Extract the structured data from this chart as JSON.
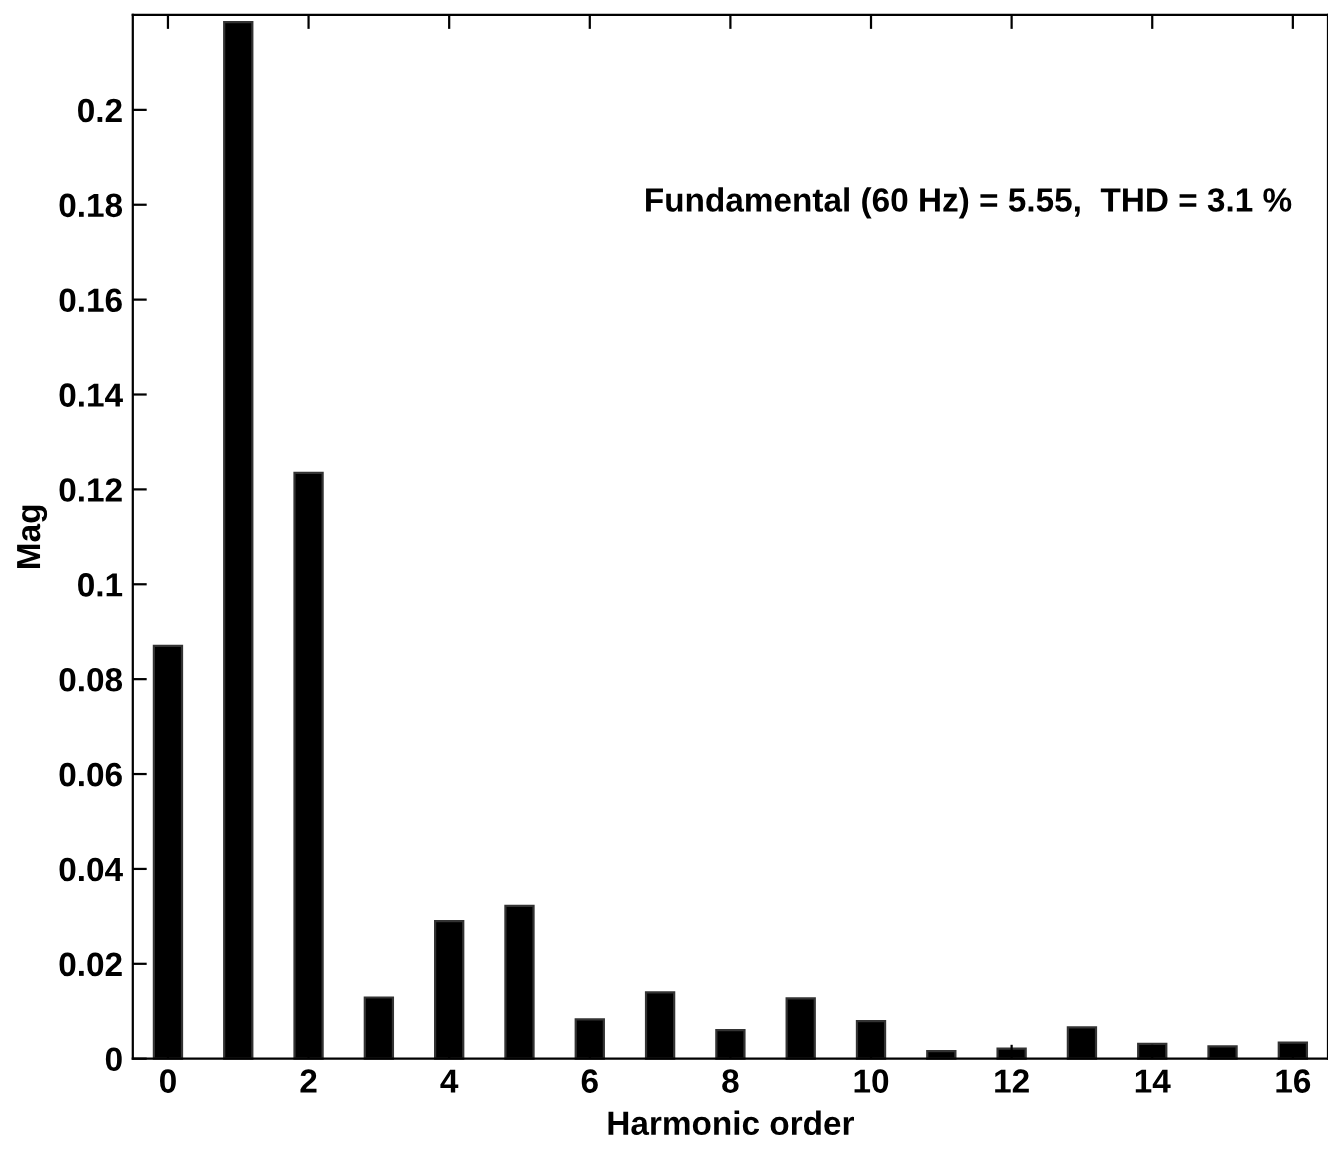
{
  "chart_data": {
    "type": "bar",
    "xlabel": "Harmonic order",
    "ylabel": "Mag",
    "x": [
      0,
      1,
      2,
      3,
      4,
      5,
      6,
      7,
      8,
      9,
      10,
      11,
      12,
      13,
      14,
      15,
      16
    ],
    "values": [
      0.087,
      0.2185,
      0.1235,
      0.0129,
      0.029,
      0.0322,
      0.0083,
      0.014,
      0.006,
      0.0127,
      0.0079,
      0.0016,
      0.0021,
      0.0066,
      0.0031,
      0.0026,
      0.0034
    ],
    "color": "#000000",
    "xlim": [
      -0.5,
      16.5
    ],
    "xticks": [
      0,
      2,
      4,
      6,
      8,
      10,
      12,
      14,
      16
    ],
    "ylim": [
      0,
      0.22
    ],
    "yticks": [
      0,
      0.02,
      0.04,
      0.06,
      0.08,
      0.1,
      0.12,
      0.14,
      0.16,
      0.18,
      0.2
    ],
    "annotations": [
      "Fundamental (60 Hz) = 5.55,  THD = 3.1 %"
    ],
    "grid": false
  }
}
